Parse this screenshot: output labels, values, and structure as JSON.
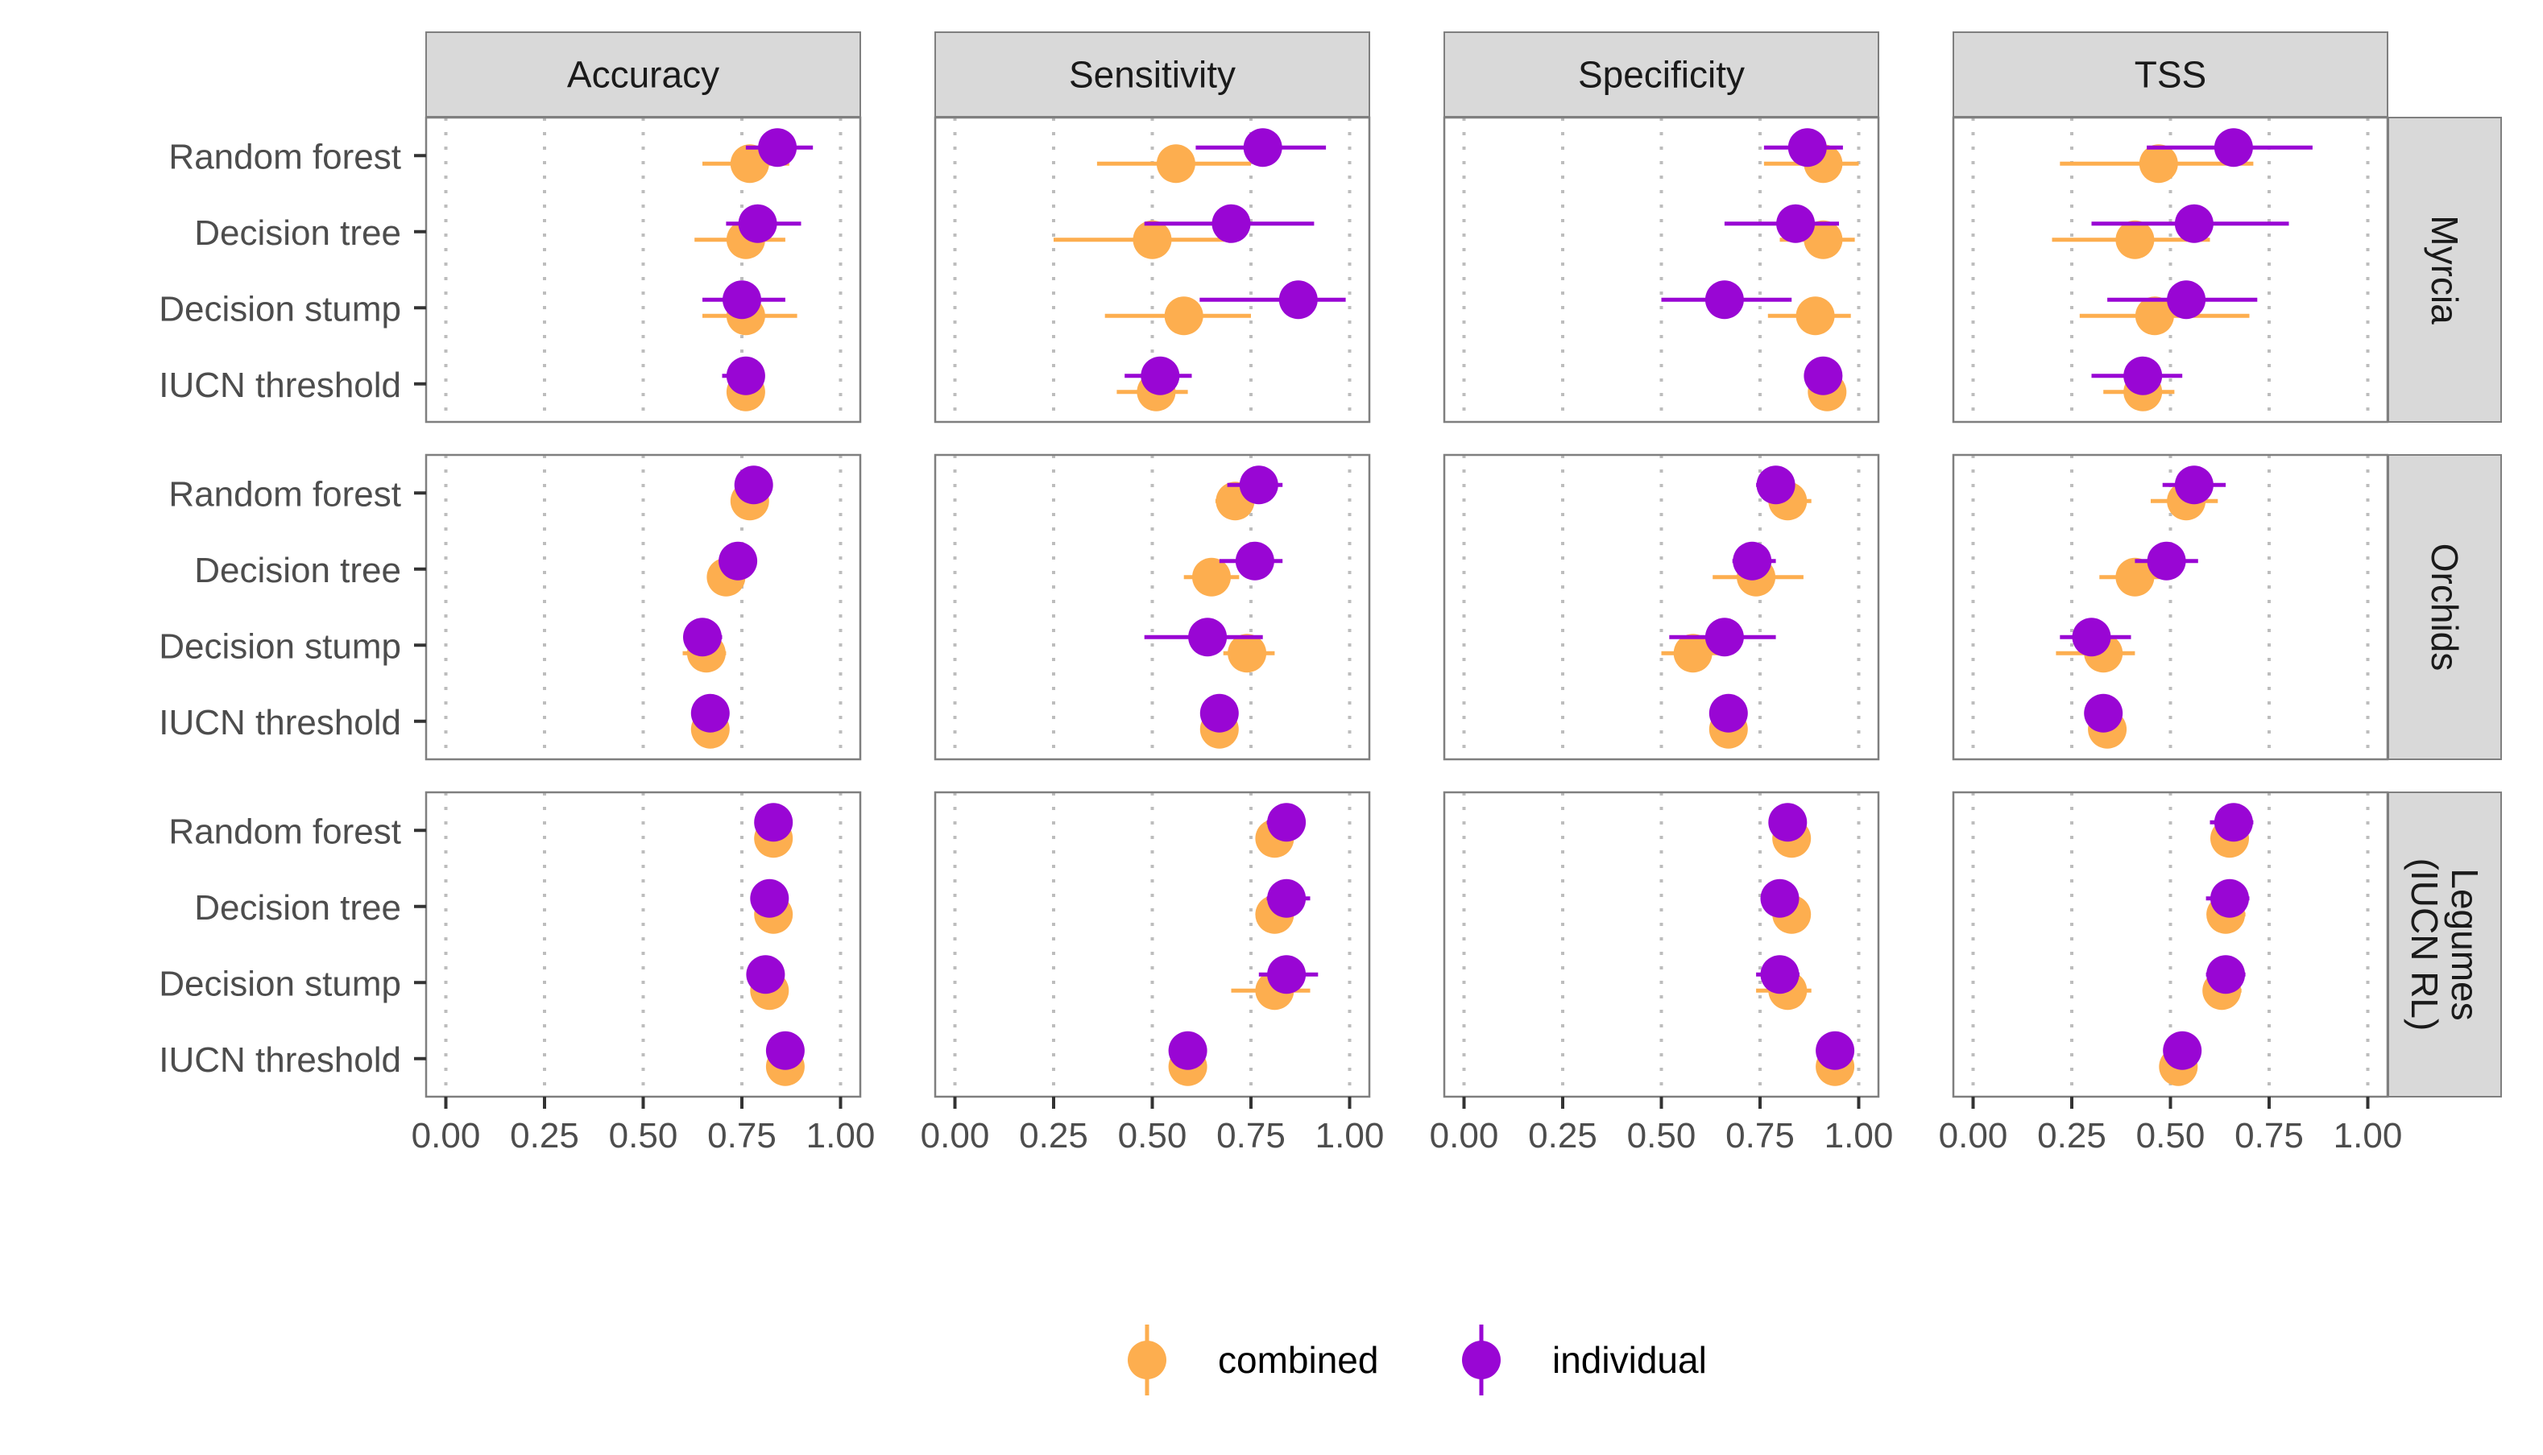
{
  "colors": {
    "combined": "#FDAE4F",
    "individual": "#9906D4",
    "strip_fill": "#D9D9D9",
    "panel_border": "#7F7F7F",
    "grid": "#BDBDBD",
    "tick_text": "#4D4D4D"
  },
  "chart_data": {
    "type": "scatter",
    "subtype": "point-range faceted grid",
    "x_ticks": [
      "0.00",
      "0.25",
      "0.50",
      "0.75",
      "1.00"
    ],
    "x_tick_values": [
      0,
      0.25,
      0.5,
      0.75,
      1
    ],
    "xlim": [
      -0.05,
      1.05
    ],
    "grid": "vertical dotted",
    "legend_position": "bottom",
    "metrics": [
      "Accuracy",
      "Sensitivity",
      "Specificity",
      "TSS"
    ],
    "groups": [
      {
        "label": [
          "Myrcia"
        ]
      },
      {
        "label": [
          "Orchids"
        ]
      },
      {
        "label": [
          "Legumes",
          "(IUCN RL)"
        ]
      }
    ],
    "methods": [
      "Random forest",
      "Decision tree",
      "Decision stump",
      "IUCN threshold"
    ],
    "series": [
      {
        "name": "combined",
        "values": [
          [
            [
              [
                0.77,
                0.65,
                0.87
              ],
              [
                0.76,
                0.63,
                0.86
              ],
              [
                0.76,
                0.65,
                0.89
              ],
              [
                0.76,
                0.72,
                0.79
              ]
            ],
            [
              [
                0.56,
                0.36,
                0.75
              ],
              [
                0.5,
                0.25,
                0.71
              ],
              [
                0.58,
                0.38,
                0.75
              ],
              [
                0.51,
                0.41,
                0.59
              ]
            ],
            [
              [
                0.91,
                0.76,
                1.0
              ],
              [
                0.91,
                0.8,
                0.99
              ],
              [
                0.89,
                0.77,
                0.98
              ],
              [
                0.92,
                0.9,
                0.94
              ]
            ],
            [
              [
                0.47,
                0.22,
                0.71
              ],
              [
                0.41,
                0.2,
                0.6
              ],
              [
                0.46,
                0.27,
                0.7
              ],
              [
                0.43,
                0.33,
                0.51
              ]
            ]
          ],
          [
            [
              [
                0.77,
                0.74,
                0.8
              ],
              [
                0.71,
                0.68,
                0.74
              ],
              [
                0.66,
                0.6,
                0.71
              ],
              [
                0.67,
                0.64,
                0.7
              ]
            ],
            [
              [
                0.71,
                0.66,
                0.76
              ],
              [
                0.65,
                0.58,
                0.72
              ],
              [
                0.74,
                0.68,
                0.81
              ],
              [
                0.67,
                0.64,
                0.7
              ]
            ],
            [
              [
                0.82,
                0.77,
                0.88
              ],
              [
                0.74,
                0.63,
                0.86
              ],
              [
                0.58,
                0.5,
                0.67
              ],
              [
                0.67,
                0.64,
                0.7
              ]
            ],
            [
              [
                0.54,
                0.45,
                0.62
              ],
              [
                0.41,
                0.32,
                0.49
              ],
              [
                0.33,
                0.21,
                0.41
              ],
              [
                0.34,
                0.3,
                0.38
              ]
            ]
          ],
          [
            [
              [
                0.83,
                0.8,
                0.85
              ],
              [
                0.83,
                0.8,
                0.85
              ],
              [
                0.82,
                0.8,
                0.85
              ],
              [
                0.86,
                0.84,
                0.88
              ]
            ],
            [
              [
                0.81,
                0.78,
                0.84
              ],
              [
                0.81,
                0.78,
                0.84
              ],
              [
                0.81,
                0.7,
                0.9
              ],
              [
                0.59,
                0.56,
                0.62
              ]
            ],
            [
              [
                0.83,
                0.8,
                0.85
              ],
              [
                0.83,
                0.8,
                0.85
              ],
              [
                0.82,
                0.74,
                0.88
              ],
              [
                0.94,
                0.92,
                0.96
              ]
            ],
            [
              [
                0.65,
                0.61,
                0.69
              ],
              [
                0.64,
                0.6,
                0.69
              ],
              [
                0.63,
                0.59,
                0.68
              ],
              [
                0.52,
                0.49,
                0.55
              ]
            ]
          ]
        ]
      },
      {
        "name": "individual",
        "values": [
          [
            [
              [
                0.84,
                0.76,
                0.93
              ],
              [
                0.79,
                0.71,
                0.9
              ],
              [
                0.75,
                0.65,
                0.86
              ],
              [
                0.76,
                0.7,
                0.8
              ]
            ],
            [
              [
                0.78,
                0.61,
                0.94
              ],
              [
                0.7,
                0.48,
                0.91
              ],
              [
                0.87,
                0.62,
                0.99
              ],
              [
                0.52,
                0.43,
                0.6
              ]
            ],
            [
              [
                0.87,
                0.76,
                0.96
              ],
              [
                0.84,
                0.66,
                0.95
              ],
              [
                0.66,
                0.5,
                0.83
              ],
              [
                0.91,
                0.89,
                0.93
              ]
            ],
            [
              [
                0.66,
                0.44,
                0.86
              ],
              [
                0.56,
                0.3,
                0.8
              ],
              [
                0.54,
                0.34,
                0.72
              ],
              [
                0.43,
                0.3,
                0.53
              ]
            ]
          ],
          [
            [
              [
                0.78,
                0.75,
                0.81
              ],
              [
                0.74,
                0.71,
                0.77
              ],
              [
                0.65,
                0.61,
                0.7
              ],
              [
                0.67,
                0.64,
                0.7
              ]
            ],
            [
              [
                0.77,
                0.69,
                0.83
              ],
              [
                0.76,
                0.67,
                0.83
              ],
              [
                0.64,
                0.48,
                0.78
              ],
              [
                0.67,
                0.64,
                0.7
              ]
            ],
            [
              [
                0.79,
                0.74,
                0.83
              ],
              [
                0.73,
                0.68,
                0.79
              ],
              [
                0.66,
                0.52,
                0.79
              ],
              [
                0.67,
                0.64,
                0.7
              ]
            ],
            [
              [
                0.56,
                0.48,
                0.64
              ],
              [
                0.49,
                0.41,
                0.57
              ],
              [
                0.3,
                0.22,
                0.4
              ],
              [
                0.33,
                0.29,
                0.37
              ]
            ]
          ],
          [
            [
              [
                0.83,
                0.8,
                0.85
              ],
              [
                0.82,
                0.79,
                0.85
              ],
              [
                0.81,
                0.78,
                0.84
              ],
              [
                0.86,
                0.84,
                0.88
              ]
            ],
            [
              [
                0.84,
                0.79,
                0.88
              ],
              [
                0.84,
                0.79,
                0.9
              ],
              [
                0.84,
                0.77,
                0.92
              ],
              [
                0.59,
                0.56,
                0.62
              ]
            ],
            [
              [
                0.82,
                0.79,
                0.85
              ],
              [
                0.8,
                0.77,
                0.83
              ],
              [
                0.8,
                0.74,
                0.85
              ],
              [
                0.94,
                0.92,
                0.96
              ]
            ],
            [
              [
                0.66,
                0.6,
                0.71
              ],
              [
                0.65,
                0.59,
                0.7
              ],
              [
                0.64,
                0.59,
                0.69
              ],
              [
                0.53,
                0.5,
                0.56
              ]
            ]
          ]
        ]
      }
    ]
  }
}
